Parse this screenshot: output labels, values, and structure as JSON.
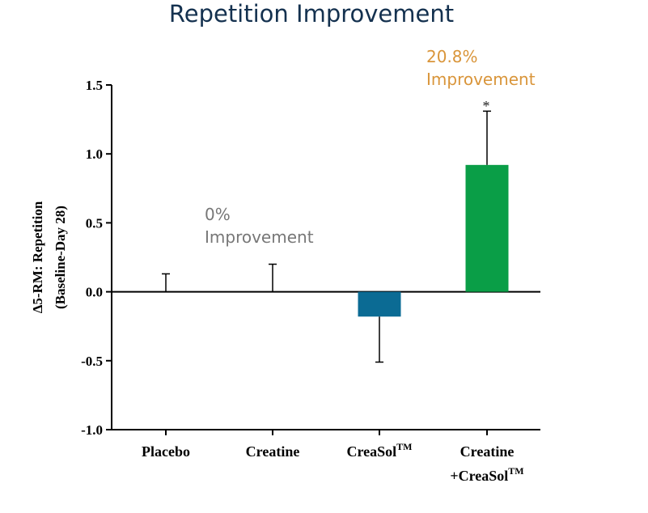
{
  "chart_data": {
    "type": "bar",
    "title": "Repetition Improvement",
    "ylabel_line1": "Δ5-RM: Repetition",
    "ylabel_line2": "(Baseline-Day 28)",
    "ylim": [
      -1.0,
      1.5
    ],
    "yticks": [
      "1.5",
      "1.0",
      "0.5",
      "0.0",
      "-0.5",
      "-1.0"
    ],
    "categories": [
      {
        "line1": "Placebo",
        "line2": "",
        "tm": ""
      },
      {
        "line1": "Creatine",
        "line2": "",
        "tm": ""
      },
      {
        "line1": "CreaSol",
        "line2": "",
        "tm": "TM"
      },
      {
        "line1": "Creatine",
        "line2": "+CreaSol",
        "tm": "TM"
      }
    ],
    "values": [
      0.0,
      0.0,
      -0.18,
      0.92
    ],
    "error_ends": [
      0.13,
      0.2,
      -0.51,
      1.31
    ],
    "colors": [
      "#ffffff",
      "#ffffff",
      "#0b6b94",
      "#0a9e47"
    ],
    "annotations": {
      "zero": {
        "line1": "0%",
        "line2": "Improvement",
        "color": "#777777"
      },
      "top": {
        "line1": "20.8%",
        "line2": "Improvement",
        "color": "#d9953a"
      },
      "significance": "*"
    },
    "grid": false,
    "legend": "none"
  }
}
